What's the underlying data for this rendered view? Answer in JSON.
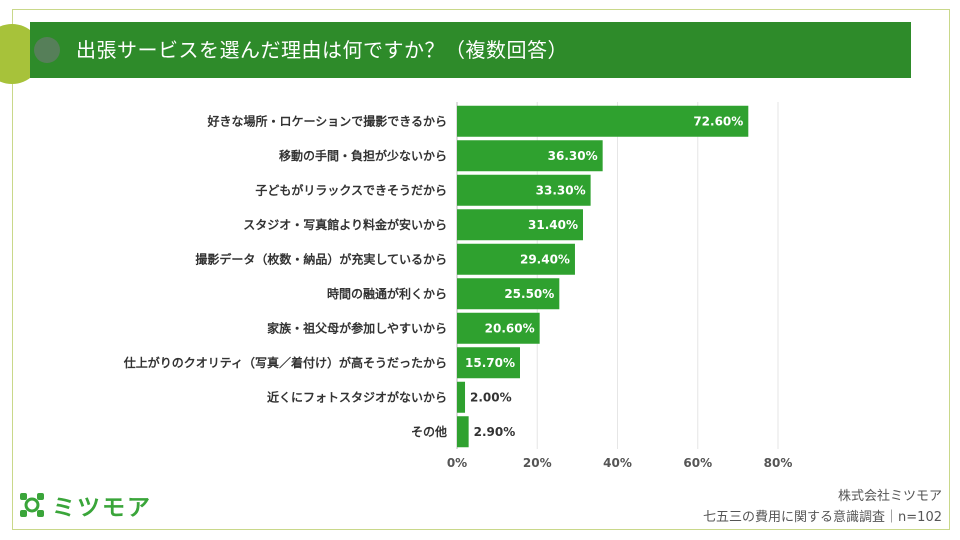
{
  "header": {
    "title": "出張サービスを選んだ理由は何ですか？（複数回答）"
  },
  "chart_data": {
    "type": "bar",
    "orientation": "horizontal",
    "categories": [
      "好きな場所・ロケーションで撮影できるから",
      "移動の手間・負担が少ないから",
      "子どもがリラックスできそうだから",
      "スタジオ・写真館より料金が安いから",
      "撮影データ（枚数・納品）が充実しているから",
      "時間の融通が利くから",
      "家族・祖父母が参加しやすいから",
      "仕上がりのクオリティ（写真／着付け）が高そうだったから",
      "近くにフォトスタジオがないから",
      "その他"
    ],
    "values": [
      72.6,
      36.3,
      33.3,
      31.4,
      29.4,
      25.5,
      20.6,
      15.7,
      2.0,
      2.9
    ],
    "value_labels": [
      "72.60%",
      "36.30%",
      "33.30%",
      "31.40%",
      "29.40%",
      "25.50%",
      "20.60%",
      "15.70%",
      "2.00%",
      "2.90%"
    ],
    "x_ticks": [
      "0%",
      "20%",
      "40%",
      "60%",
      "80%"
    ],
    "xlim": [
      0,
      80
    ],
    "grid": true,
    "bar_color": "#2fa12f"
  },
  "logo": {
    "text": "ミツモア"
  },
  "footer": {
    "company": "株式会社ミツモア",
    "survey": "七五三の費用に関する意識調査｜n=102"
  }
}
